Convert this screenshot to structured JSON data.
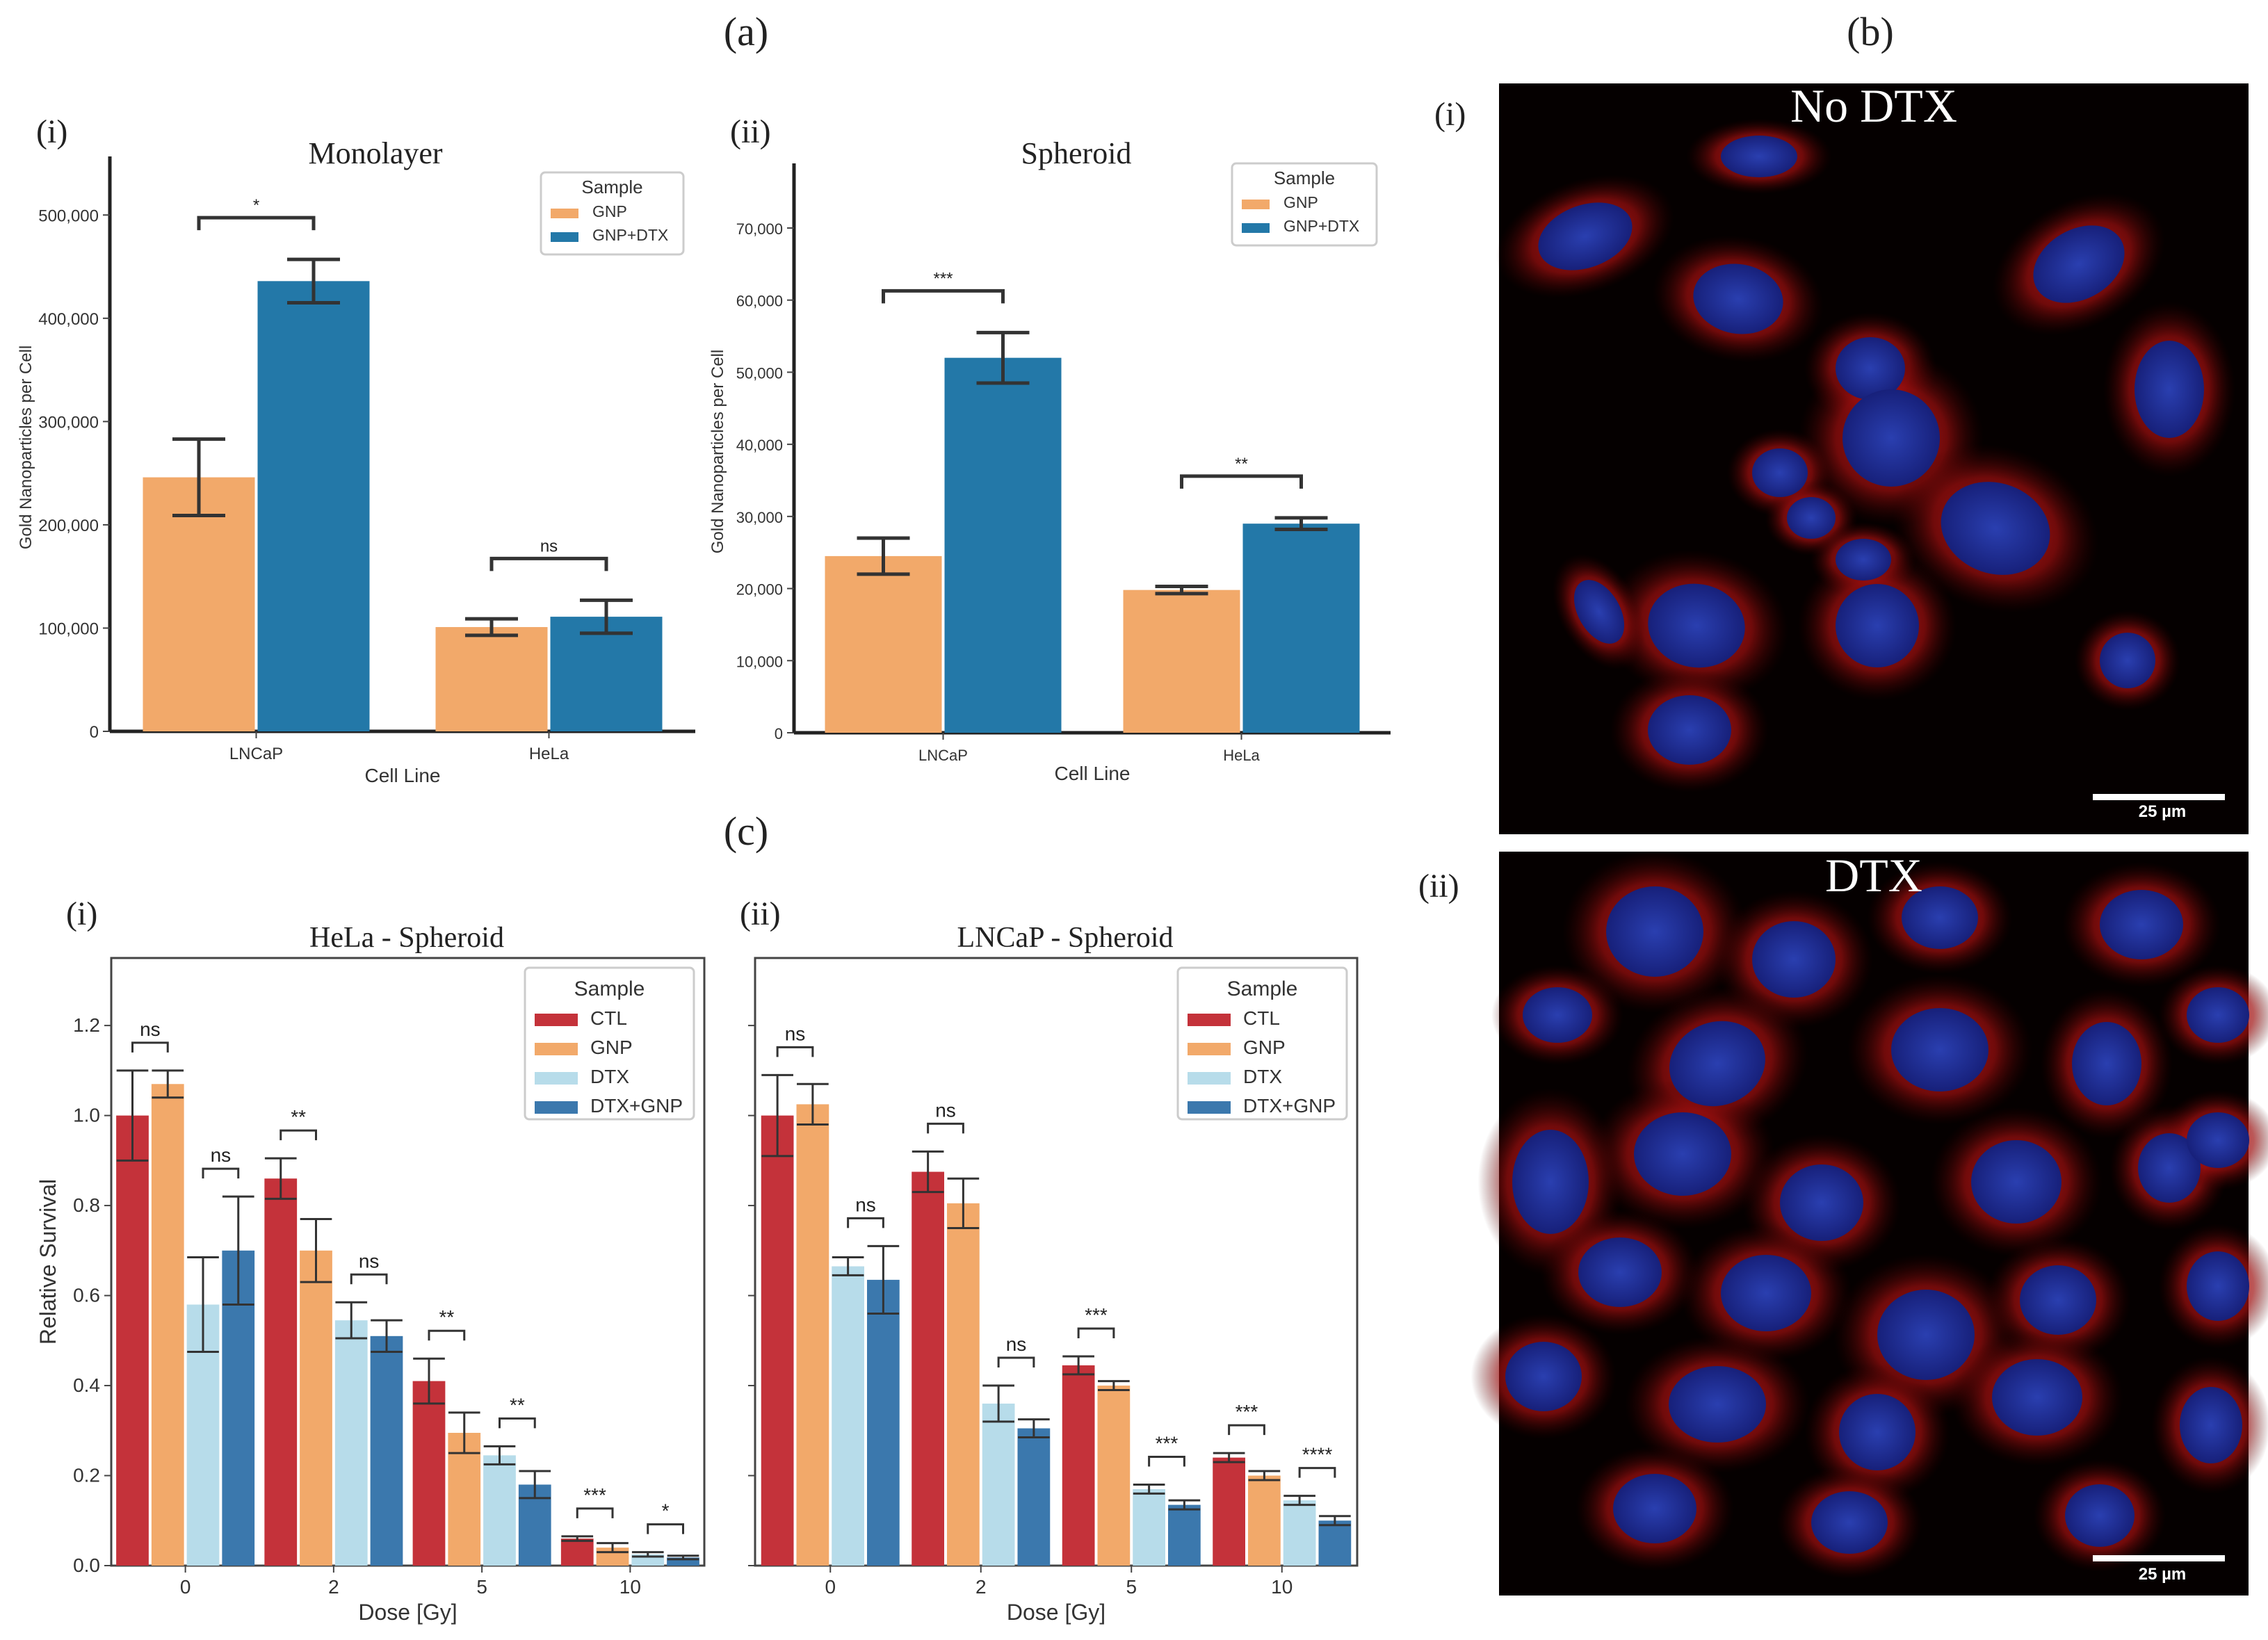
{
  "labels": {
    "a": "(a)",
    "b": "(b)",
    "c": "(c)",
    "a_i": "(i)",
    "a_ii": "(ii)",
    "b_i": "(i)",
    "b_ii": "(ii)",
    "c_i": "(i)",
    "c_ii": "(ii)"
  },
  "colors": {
    "GNP": "#f2a96a",
    "GNP+DTX": "#2378a8",
    "CTL": "#c4323a",
    "DTX": "#b7dcea",
    "DTX+GNP": "#3b78ad"
  },
  "micrographs": {
    "top_title": "No DTX",
    "bottom_title": "DTX",
    "scale_label": "25 µm"
  },
  "chart_data": [
    {
      "id": "monolayer",
      "type": "bar",
      "title": "Monolayer",
      "xlabel": "Cell Line",
      "ylabel": "Gold Nanoparticles per Cell",
      "categories": [
        "LNCaP",
        "HeLa"
      ],
      "ylim": [
        0,
        550000
      ],
      "yticks": [
        0,
        100000,
        200000,
        300000,
        400000,
        500000
      ],
      "ytick_labels": [
        "0",
        "100,000",
        "200,000",
        "300,000",
        "400,000",
        "500,000"
      ],
      "legend": {
        "title": "Sample",
        "position": "top-right"
      },
      "series": [
        {
          "name": "GNP",
          "values": [
            246000,
            101000
          ],
          "errors": [
            37000,
            8000
          ]
        },
        {
          "name": "GNP+DTX",
          "values": [
            436000,
            111000
          ],
          "errors": [
            21000,
            16000
          ]
        }
      ],
      "annotations": [
        {
          "category": "LNCaP",
          "text": "*"
        },
        {
          "category": "HeLa",
          "text": "ns"
        }
      ]
    },
    {
      "id": "spheroid",
      "type": "bar",
      "title": "Spheroid",
      "xlabel": "Cell Line",
      "ylabel": "Gold Nanoparticles per Cell",
      "categories": [
        "LNCaP",
        "HeLa"
      ],
      "ylim": [
        0,
        78000
      ],
      "yticks": [
        0,
        10000,
        20000,
        30000,
        40000,
        50000,
        60000,
        70000
      ],
      "ytick_labels": [
        "0",
        "10,000",
        "20,000",
        "30,000",
        "40,000",
        "50,000",
        "60,000",
        "70,000"
      ],
      "legend": {
        "title": "Sample",
        "position": "top-right"
      },
      "series": [
        {
          "name": "GNP",
          "values": [
            24500,
            19800
          ],
          "errors": [
            2500,
            500
          ]
        },
        {
          "name": "GNP+DTX",
          "values": [
            52000,
            29000
          ],
          "errors": [
            3500,
            800
          ]
        }
      ],
      "annotations": [
        {
          "category": "LNCaP",
          "text": "***"
        },
        {
          "category": "HeLa",
          "text": "**"
        }
      ]
    },
    {
      "id": "hela_spheroid",
      "type": "bar",
      "title": "HeLa - Spheroid",
      "xlabel": "Dose [Gy]",
      "ylabel": "Relative Survival",
      "categories": [
        "0",
        "2",
        "5",
        "10"
      ],
      "ylim": [
        0,
        1.35
      ],
      "yticks": [
        0,
        0.2,
        0.4,
        0.6,
        0.8,
        1.0,
        1.2
      ],
      "ytick_labels": [
        "0.0",
        "0.2",
        "0.4",
        "0.6",
        "0.8",
        "1.0",
        "1.2"
      ],
      "legend": {
        "title": "Sample",
        "position": "top-right"
      },
      "series": [
        {
          "name": "CTL",
          "values": [
            1.0,
            0.86,
            0.41,
            0.06
          ],
          "errors": [
            0.1,
            0.045,
            0.05,
            0.005
          ]
        },
        {
          "name": "GNP",
          "values": [
            1.07,
            0.7,
            0.295,
            0.04
          ],
          "errors": [
            0.03,
            0.07,
            0.045,
            0.01
          ]
        },
        {
          "name": "DTX",
          "values": [
            0.58,
            0.545,
            0.245,
            0.025
          ],
          "errors": [
            0.105,
            0.04,
            0.02,
            0.005
          ]
        },
        {
          "name": "DTX+GNP",
          "values": [
            0.7,
            0.51,
            0.18,
            0.018
          ],
          "errors": [
            0.12,
            0.035,
            0.03,
            0.004
          ]
        }
      ],
      "annotations": [
        {
          "category": "0",
          "pair": "CTL-GNP",
          "text": "ns"
        },
        {
          "category": "0",
          "pair": "DTX-DTX+GNP",
          "text": "ns"
        },
        {
          "category": "2",
          "pair": "CTL-GNP",
          "text": "**"
        },
        {
          "category": "2",
          "pair": "DTX-DTX+GNP",
          "text": "ns"
        },
        {
          "category": "5",
          "pair": "CTL-GNP",
          "text": "**"
        },
        {
          "category": "5",
          "pair": "DTX-DTX+GNP",
          "text": "**"
        },
        {
          "category": "10",
          "pair": "CTL-GNP",
          "text": "***"
        },
        {
          "category": "10",
          "pair": "DTX-DTX+GNP",
          "text": "*"
        }
      ]
    },
    {
      "id": "lncap_spheroid",
      "type": "bar",
      "title": "LNCaP - Spheroid",
      "xlabel": "Dose [Gy]",
      "ylabel": "",
      "categories": [
        "0",
        "2",
        "5",
        "10"
      ],
      "ylim": [
        0,
        1.35
      ],
      "yticks": [
        0,
        0.2,
        0.4,
        0.6,
        0.8,
        1.0,
        1.2
      ],
      "ytick_labels": [],
      "legend": {
        "title": "Sample",
        "position": "top-right"
      },
      "series": [
        {
          "name": "CTL",
          "values": [
            1.0,
            0.875,
            0.445,
            0.24
          ],
          "errors": [
            0.09,
            0.045,
            0.02,
            0.01
          ]
        },
        {
          "name": "GNP",
          "values": [
            1.025,
            0.805,
            0.4,
            0.2
          ],
          "errors": [
            0.045,
            0.055,
            0.01,
            0.01
          ]
        },
        {
          "name": "DTX",
          "values": [
            0.665,
            0.36,
            0.17,
            0.145
          ],
          "errors": [
            0.02,
            0.04,
            0.01,
            0.01
          ]
        },
        {
          "name": "DTX+GNP",
          "values": [
            0.635,
            0.305,
            0.135,
            0.1
          ],
          "errors": [
            0.075,
            0.02,
            0.01,
            0.01
          ]
        }
      ],
      "annotations": [
        {
          "category": "0",
          "pair": "CTL-GNP",
          "text": "ns"
        },
        {
          "category": "0",
          "pair": "DTX-DTX+GNP",
          "text": "ns"
        },
        {
          "category": "2",
          "pair": "CTL-GNP",
          "text": "ns"
        },
        {
          "category": "2",
          "pair": "DTX-DTX+GNP",
          "text": "ns"
        },
        {
          "category": "5",
          "pair": "CTL-GNP",
          "text": "***"
        },
        {
          "category": "5",
          "pair": "DTX-DTX+GNP",
          "text": "***"
        },
        {
          "category": "10",
          "pair": "CTL-GNP",
          "text": "***"
        },
        {
          "category": "10",
          "pair": "DTX-DTX+GNP",
          "text": "****"
        }
      ]
    }
  ]
}
